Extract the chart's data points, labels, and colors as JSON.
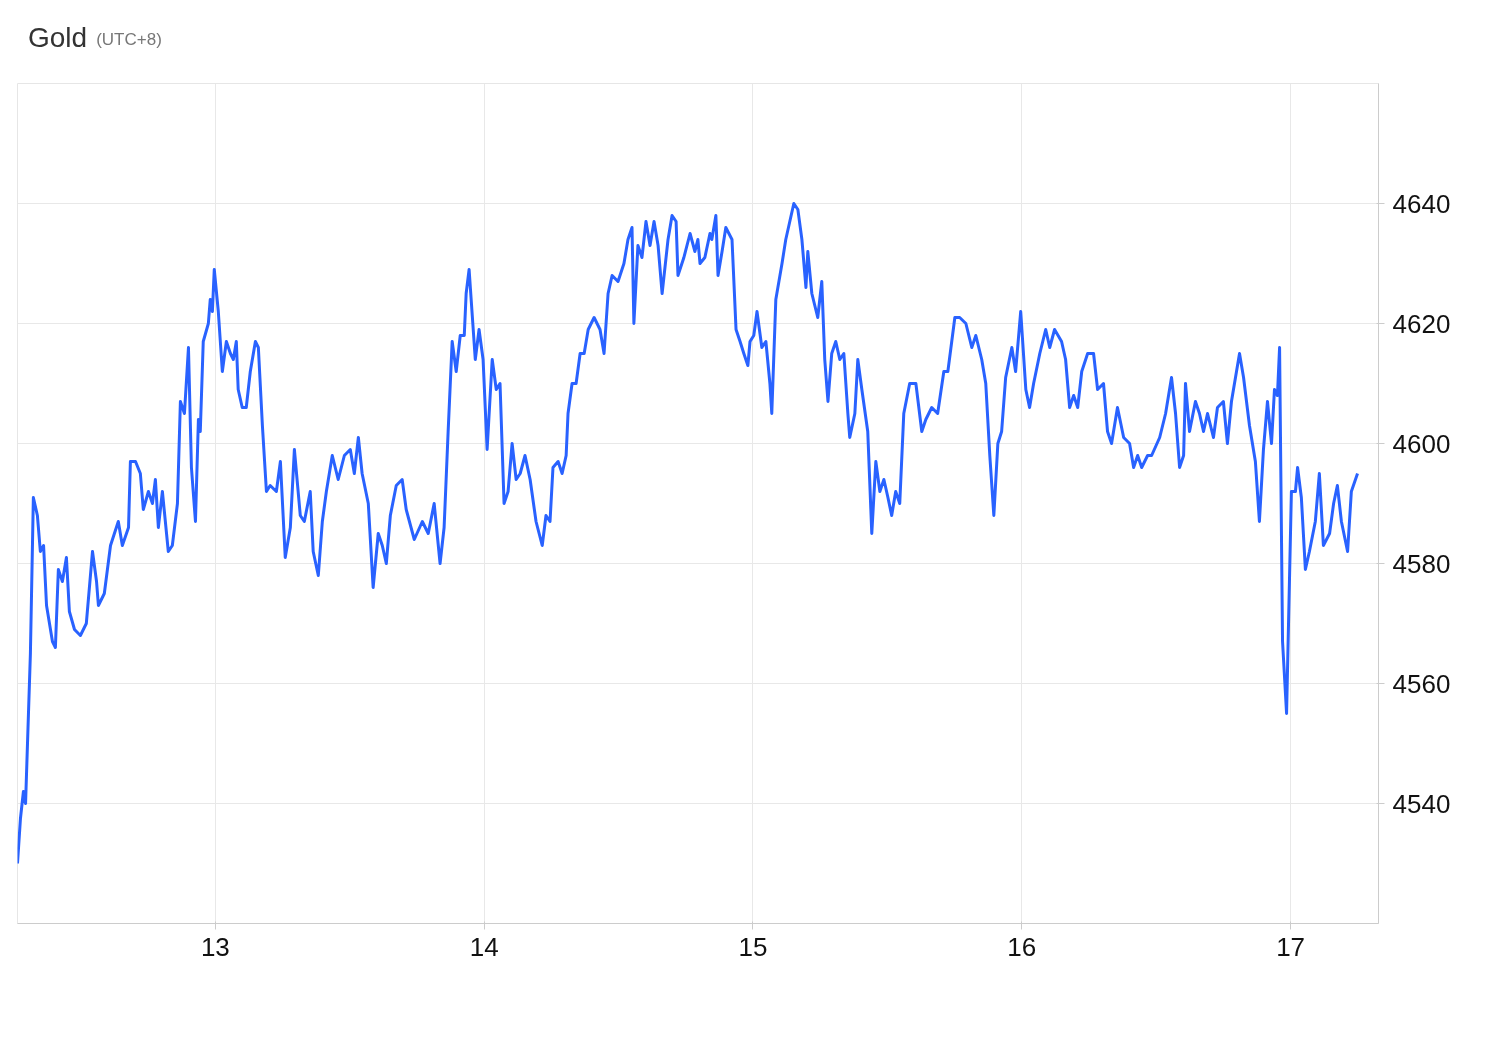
{
  "chart_data": {
    "type": "line",
    "title": "Gold",
    "subtitle": "(UTC+8)",
    "x": [
      12.264,
      12.275,
      12.286,
      12.294,
      12.312,
      12.323,
      12.338,
      12.349,
      12.361,
      12.372,
      12.394,
      12.405,
      12.416,
      12.431,
      12.446,
      12.457,
      12.476,
      12.498,
      12.52,
      12.543,
      12.558,
      12.565,
      12.587,
      12.61,
      12.639,
      12.654,
      12.677,
      12.684,
      12.703,
      12.721,
      12.732,
      12.751,
      12.766,
      12.777,
      12.788,
      12.803,
      12.825,
      12.84,
      12.859,
      12.87,
      12.885,
      12.9,
      12.911,
      12.926,
      12.937,
      12.944,
      12.955,
      12.974,
      12.981,
      12.989,
      12.996,
      13.011,
      13.026,
      13.041,
      13.056,
      13.067,
      13.078,
      13.085,
      13.1,
      13.115,
      13.13,
      13.149,
      13.16,
      13.175,
      13.19,
      13.204,
      13.227,
      13.242,
      13.26,
      13.279,
      13.294,
      13.316,
      13.331,
      13.353,
      13.364,
      13.383,
      13.398,
      13.413,
      13.435,
      13.457,
      13.48,
      13.502,
      13.517,
      13.532,
      13.546,
      13.569,
      13.587,
      13.606,
      13.621,
      13.636,
      13.651,
      13.673,
      13.695,
      13.71,
      13.74,
      13.77,
      13.792,
      13.814,
      13.836,
      13.851,
      13.866,
      13.881,
      13.896,
      13.911,
      13.926,
      13.933,
      13.944,
      13.967,
      13.981,
      13.996,
      14.011,
      14.03,
      14.045,
      14.059,
      14.074,
      14.089,
      14.104,
      14.119,
      14.134,
      14.152,
      14.171,
      14.193,
      14.216,
      14.23,
      14.245,
      14.256,
      14.275,
      14.29,
      14.305,
      14.312,
      14.327,
      14.342,
      14.357,
      14.372,
      14.387,
      14.409,
      14.431,
      14.446,
      14.461,
      14.476,
      14.498,
      14.52,
      14.535,
      14.55,
      14.557,
      14.572,
      14.587,
      14.602,
      14.617,
      14.632,
      14.647,
      14.662,
      14.684,
      14.699,
      14.714,
      14.721,
      14.743,
      14.766,
      14.784,
      14.795,
      14.803,
      14.821,
      14.84,
      14.847,
      14.862,
      14.87,
      14.885,
      14.899,
      14.922,
      14.937,
      14.952,
      14.966,
      14.981,
      14.989,
      15.003,
      15.015,
      15.033,
      15.048,
      15.063,
      15.07,
      15.085,
      15.108,
      15.122,
      15.137,
      15.152,
      15.167,
      15.182,
      15.197,
      15.204,
      15.219,
      15.241,
      15.256,
      15.267,
      15.279,
      15.293,
      15.308,
      15.323,
      15.338,
      15.353,
      15.36,
      15.379,
      15.39,
      15.405,
      15.427,
      15.442,
      15.457,
      15.472,
      15.487,
      15.502,
      15.516,
      15.531,
      15.546,
      15.561,
      15.583,
      15.606,
      15.628,
      15.643,
      15.665,
      15.687,
      15.71,
      15.725,
      15.751,
      15.769,
      15.792,
      15.814,
      15.829,
      15.851,
      15.866,
      15.881,
      15.896,
      15.911,
      15.925,
      15.94,
      15.963,
      15.977,
      15.996,
      16.015,
      16.029,
      16.044,
      16.067,
      16.089,
      16.104,
      16.122,
      16.148,
      16.163,
      16.178,
      16.193,
      16.208,
      16.223,
      16.245,
      16.267,
      16.282,
      16.304,
      16.319,
      16.334,
      16.356,
      16.379,
      16.401,
      16.416,
      16.431,
      16.446,
      16.468,
      16.483,
      16.513,
      16.535,
      16.557,
      16.572,
      16.587,
      16.602,
      16.609,
      16.624,
      16.646,
      16.661,
      16.676,
      16.691,
      16.713,
      16.728,
      16.75,
      16.765,
      16.78,
      16.81,
      16.825,
      16.847,
      16.869,
      16.884,
      16.899,
      16.914,
      16.929,
      16.94,
      16.951,
      16.959,
      16.97,
      16.985,
      17.003,
      17.018,
      17.026,
      17.04,
      17.055,
      17.07,
      17.092,
      17.107,
      17.122,
      17.145,
      17.16,
      17.174,
      17.189,
      17.212,
      17.226,
      17.249
    ],
    "series": [
      {
        "color": "#2962ff",
        "values": [
          4530,
          4537.5,
          4542,
          4540,
          4565,
          4591,
          4588,
          4582,
          4583,
          4573,
          4567,
          4566,
          4579,
          4577,
          4581,
          4572,
          4569,
          4568,
          4570,
          4582,
          4577,
          4573,
          4575,
          4583,
          4587,
          4583,
          4586,
          4597,
          4597,
          4595,
          4589,
          4592,
          4590,
          4594,
          4586,
          4592,
          4582,
          4583,
          4590,
          4607,
          4605,
          4616,
          4596,
          4587,
          4604,
          4602,
          4617,
          4620,
          4624,
          4622,
          4629,
          4622,
          4612,
          4617,
          4615,
          4614,
          4617,
          4609,
          4606,
          4606,
          4612,
          4617,
          4616,
          4603,
          4592,
          4593,
          4592,
          4597,
          4581,
          4586,
          4599,
          4588,
          4587,
          4592,
          4582,
          4578,
          4587,
          4592,
          4598,
          4594,
          4598,
          4599,
          4595,
          4601,
          4595,
          4590,
          4576,
          4585,
          4583,
          4580,
          4588,
          4593,
          4594,
          4589,
          4584,
          4587,
          4585,
          4590,
          4580,
          4586,
          4602,
          4617,
          4612,
          4618,
          4618,
          4625,
          4629,
          4614,
          4619,
          4614,
          4599,
          4614,
          4609,
          4610,
          4590,
          4592,
          4600,
          4594,
          4595,
          4598,
          4594,
          4587,
          4583,
          4588,
          4587,
          4596,
          4597,
          4595,
          4598,
          4605,
          4610,
          4610,
          4615,
          4615,
          4619,
          4621,
          4619,
          4615,
          4625,
          4628,
          4627,
          4630,
          4634,
          4636,
          4620,
          4633,
          4631,
          4637,
          4633,
          4637,
          4633,
          4625,
          4634,
          4638,
          4637,
          4628,
          4631,
          4635,
          4632,
          4634,
          4630,
          4631,
          4635,
          4634,
          4638,
          4628,
          4632,
          4636,
          4634,
          4619,
          4617,
          4615,
          4613,
          4617,
          4618,
          4622,
          4616,
          4617,
          4610,
          4605,
          4624,
          4630,
          4634,
          4637,
          4640,
          4639,
          4634,
          4626,
          4632,
          4625,
          4621,
          4627,
          4614,
          4607,
          4615,
          4617,
          4614,
          4615,
          4605,
          4601,
          4605,
          4614,
          4609,
          4602,
          4585,
          4597,
          4592,
          4594,
          4591,
          4588,
          4592,
          4590,
          4605,
          4610,
          4610,
          4602,
          4604,
          4606,
          4605,
          4612,
          4612,
          4621,
          4621,
          4620,
          4616,
          4618,
          4614,
          4610,
          4598,
          4588,
          4600,
          4602,
          4611,
          4616,
          4612,
          4622,
          4609,
          4606,
          4610,
          4615,
          4619,
          4616,
          4619,
          4617,
          4614,
          4606,
          4608,
          4606,
          4612,
          4615,
          4615,
          4609,
          4610,
          4602,
          4600,
          4606,
          4601,
          4600,
          4596,
          4598,
          4596,
          4598,
          4598,
          4601,
          4605,
          4611,
          4605,
          4596,
          4598,
          4610,
          4602,
          4607,
          4605,
          4602,
          4605,
          4601,
          4606,
          4607,
          4600,
          4607,
          4615,
          4611,
          4603,
          4597,
          4587,
          4599,
          4607,
          4600,
          4609,
          4608,
          4616,
          4567,
          4555,
          4592,
          4592,
          4596,
          4591,
          4579,
          4582,
          4587,
          4595,
          4583,
          4585,
          4590,
          4593,
          4587,
          4582,
          4592,
          4595
        ]
      }
    ],
    "xlim": [
      12.264,
      17.327
    ],
    "ylim": [
      4520,
      4660
    ],
    "xticks": [
      13,
      14,
      15,
      16,
      17
    ],
    "yticks": [
      4540,
      4560,
      4580,
      4600,
      4620,
      4640
    ],
    "grid": true,
    "line_style": "solid",
    "marker": "none"
  }
}
